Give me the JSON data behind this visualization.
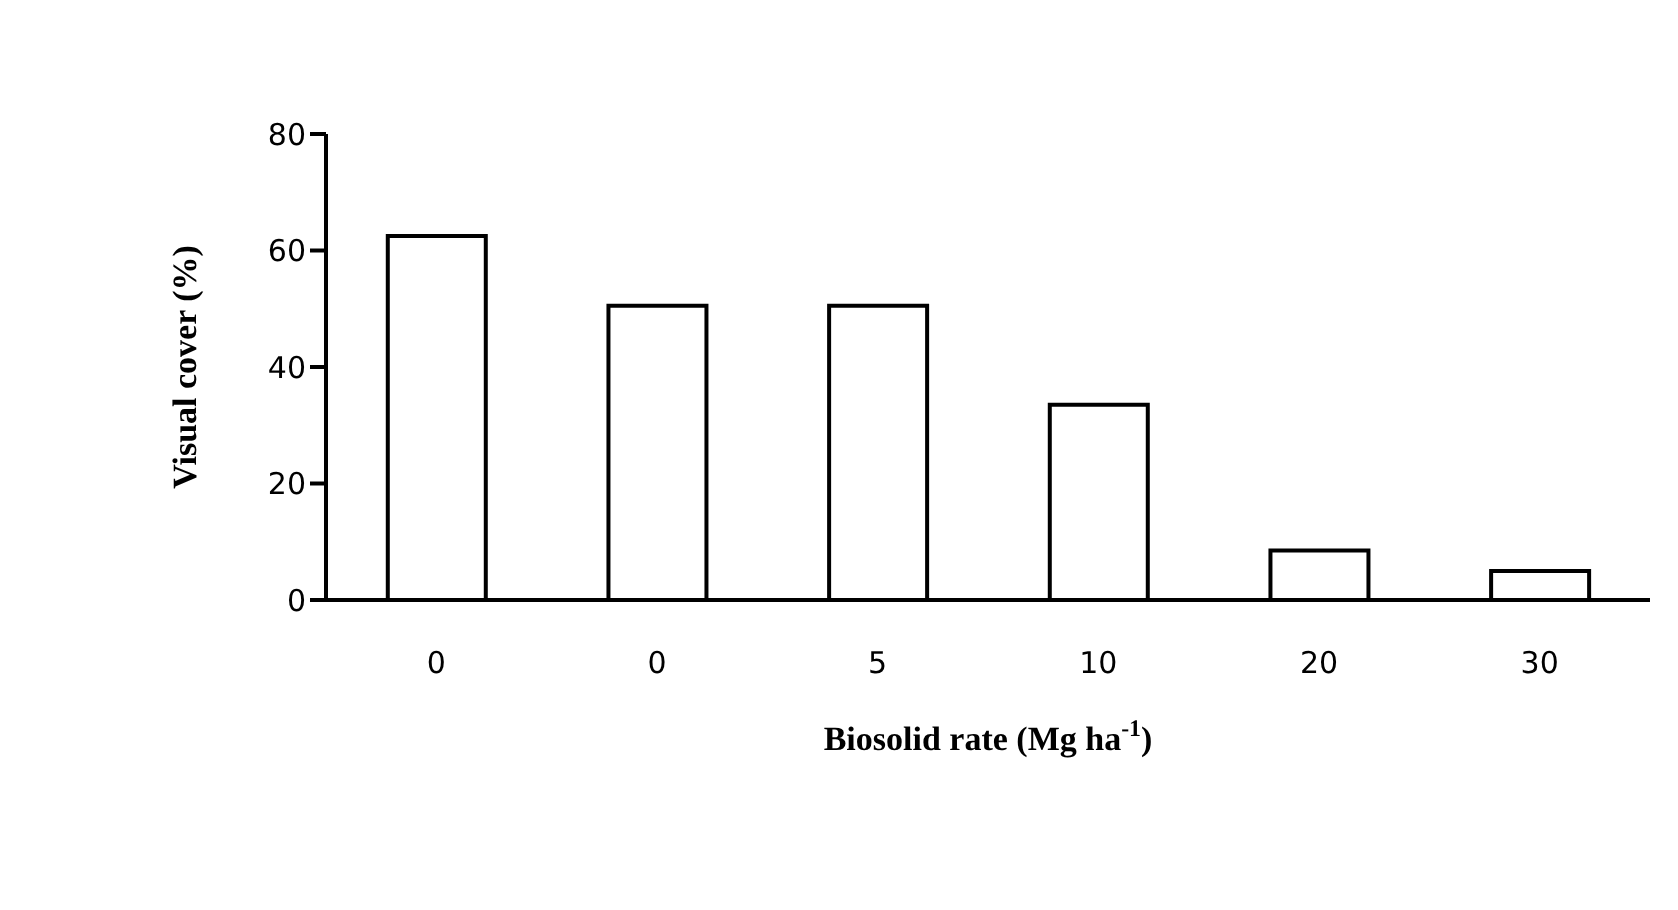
{
  "chart_data": {
    "type": "bar",
    "categories": [
      "0",
      "0",
      "5",
      "10",
      "20",
      "30"
    ],
    "values": [
      62.5,
      50.5,
      50.5,
      33.5,
      8.5,
      5
    ],
    "color": "#ffffff",
    "xlabel": "Biosolid rate (Mg ha$^{-1}$)",
    "ylabel": "Visual cover (%)",
    "ylim": [
      0,
      80
    ],
    "yticks": [
      0,
      20,
      40,
      60,
      80
    ],
    "grid": false,
    "legend": false
  }
}
